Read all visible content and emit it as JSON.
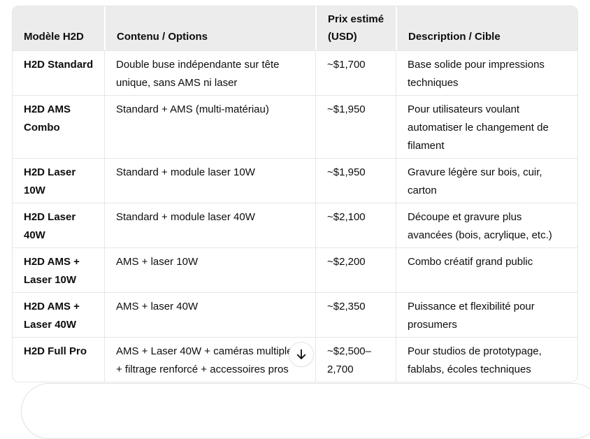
{
  "colors": {
    "page_bg": "#ffffff",
    "text": "#0d0d0d",
    "header_bg": "#ececec",
    "table_border": "#e6e6e6",
    "composer_border": "#e2e2e2"
  },
  "table": {
    "columns": [
      "Modèle H2D",
      "Contenu / Options",
      "Prix estimé (USD)",
      "Description / Cible"
    ],
    "rows": [
      {
        "model": "H2D Standard",
        "content": "Double buse indépendante sur tête unique, sans AMS ni laser",
        "price": "~$1,700",
        "description": "Base solide pour impressions techniques"
      },
      {
        "model": "H2D AMS Combo",
        "content": "Standard + AMS (multi-matériau)",
        "price": "~$1,950",
        "description": "Pour utilisateurs voulant automatiser le changement de filament"
      },
      {
        "model": "H2D Laser 10W",
        "content": "Standard + module laser 10W",
        "price": "~$1,950",
        "description": "Gravure légère sur bois, cuir, carton"
      },
      {
        "model": "H2D Laser 40W",
        "content": "Standard + module laser 40W",
        "price": "~$2,100",
        "description": "Découpe et gravure plus avancées (bois, acrylique, etc.)"
      },
      {
        "model": "H2D AMS + Laser 10W",
        "content": "AMS + laser 10W",
        "price": "~$2,200",
        "description": "Combo créatif grand public"
      },
      {
        "model": "H2D AMS + Laser 40W",
        "content": "AMS + laser 40W",
        "price": "~$2,350",
        "description": "Puissance et flexibilité pour prosumers"
      },
      {
        "model": "H2D Full Pro",
        "content": "AMS + Laser 40W + caméras multiples + filtrage renforcé + accessoires pros",
        "price": "~$2,500–2,700",
        "description": "Pour studios de prototypage, fablabs, écoles techniques"
      }
    ]
  },
  "scroll_button": {
    "icon": "arrow-down"
  }
}
